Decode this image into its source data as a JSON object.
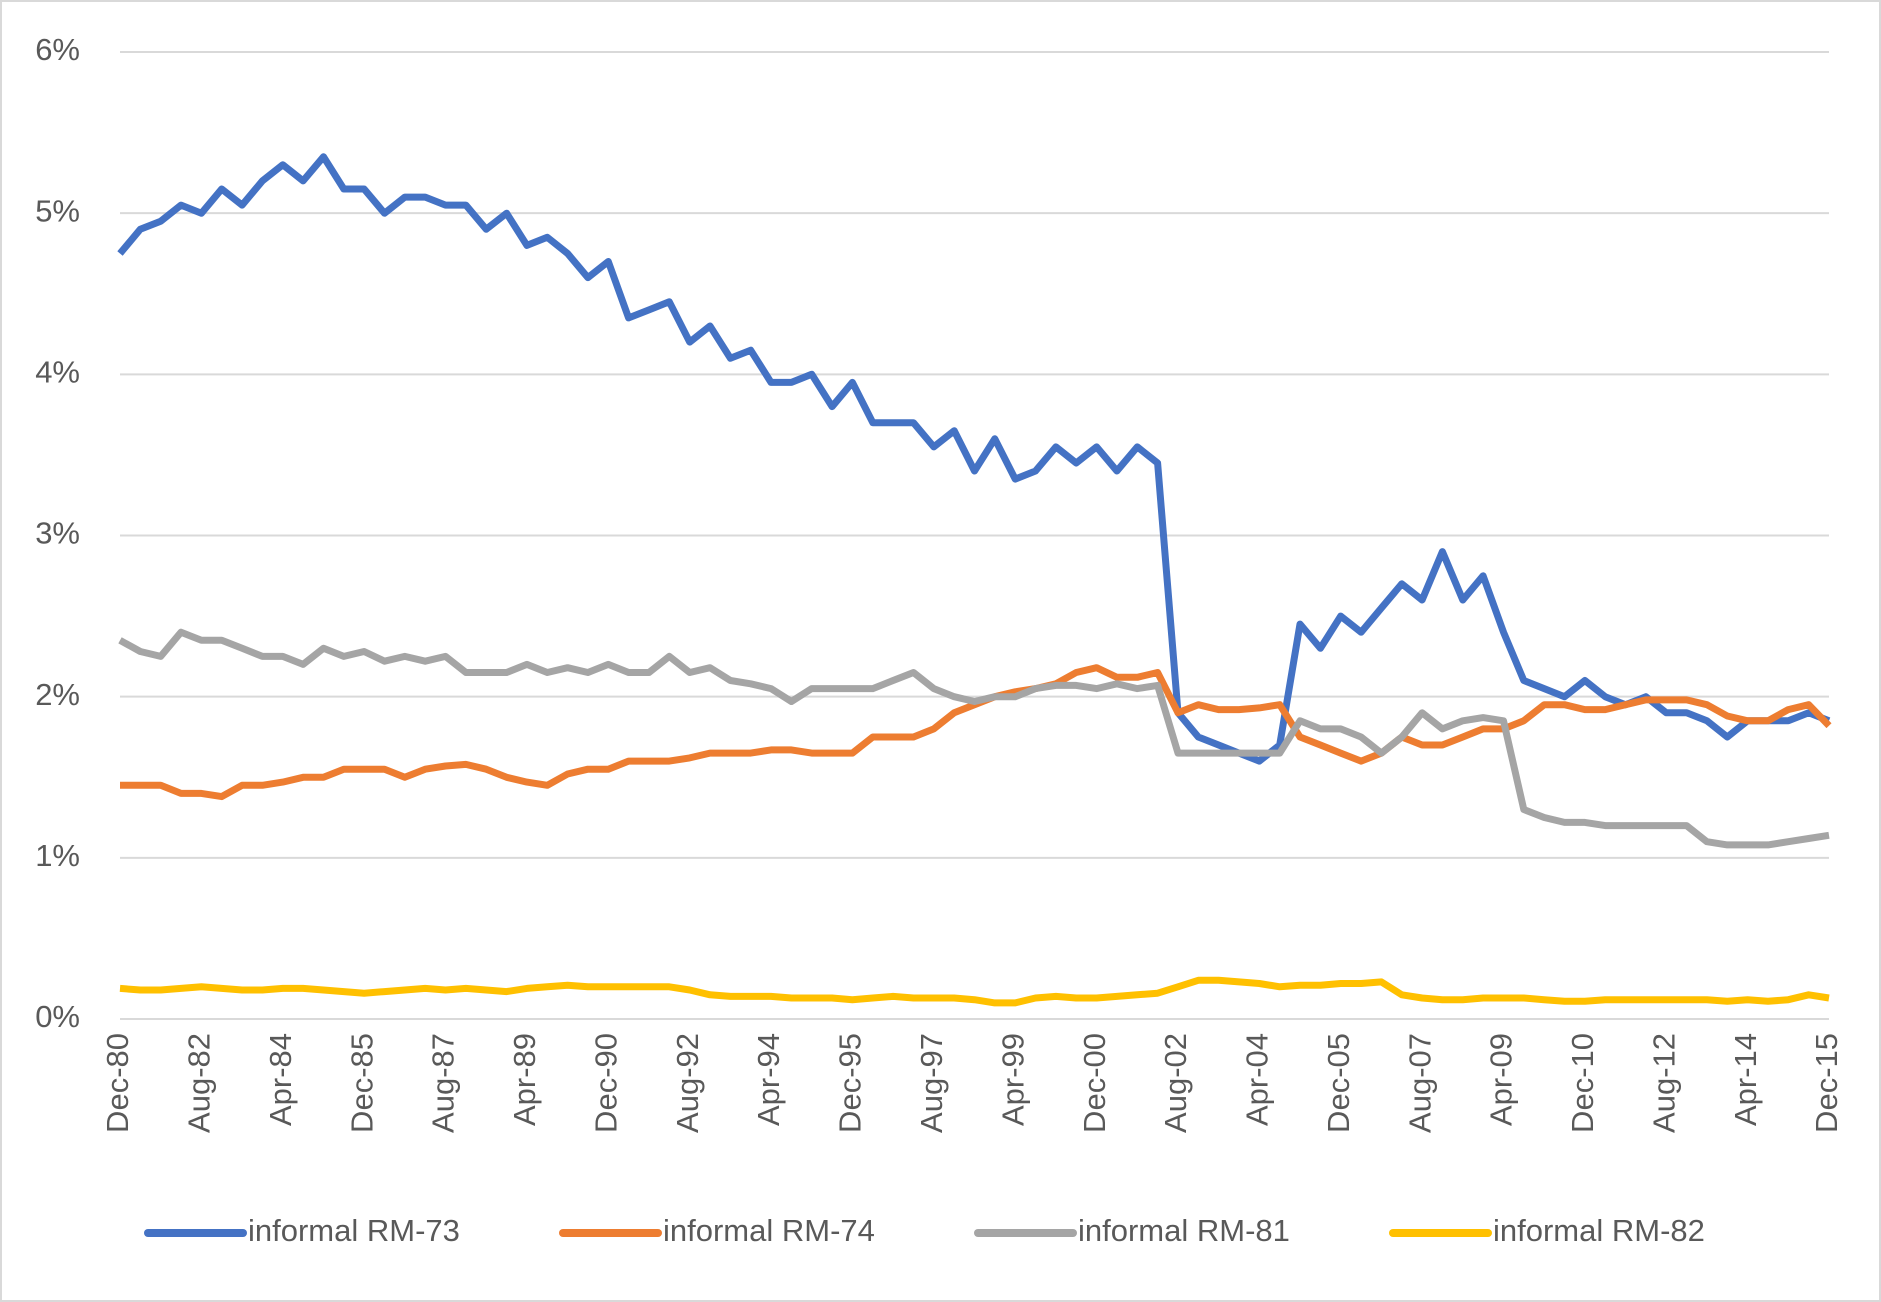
{
  "chart_data": {
    "type": "line",
    "categories": [
      "Dec-80",
      null,
      null,
      null,
      "Aug-82",
      null,
      null,
      null,
      "Apr-84",
      null,
      null,
      null,
      "Dec-85",
      null,
      null,
      null,
      "Aug-87",
      null,
      null,
      null,
      "Apr-89",
      null,
      null,
      null,
      "Dec-90",
      null,
      null,
      null,
      "Aug-92",
      null,
      null,
      null,
      "Apr-94",
      null,
      null,
      null,
      "Dec-95",
      null,
      null,
      null,
      "Aug-97",
      null,
      null,
      null,
      "Apr-99",
      null,
      null,
      null,
      "Dec-00",
      null,
      null,
      null,
      "Aug-02",
      null,
      null,
      null,
      "Apr-04",
      null,
      null,
      null,
      "Dec-05",
      null,
      null,
      null,
      "Aug-07",
      null,
      null,
      null,
      "Apr-09",
      null,
      null,
      null,
      "Dec-10",
      null,
      null,
      null,
      "Aug-12",
      null,
      null,
      null,
      "Apr-14",
      null,
      null,
      null,
      "Dec-15"
    ],
    "series": [
      {
        "name": "informal RM-73",
        "color": "#4472c4",
        "values": [
          4.75,
          4.9,
          4.95,
          5.05,
          5.0,
          5.15,
          5.05,
          5.2,
          5.3,
          5.2,
          5.35,
          5.15,
          5.15,
          5.0,
          5.1,
          5.1,
          5.05,
          5.05,
          4.9,
          5.0,
          4.8,
          4.85,
          4.75,
          4.6,
          4.7,
          4.35,
          4.4,
          4.45,
          4.2,
          4.3,
          4.1,
          4.15,
          3.95,
          3.95,
          4.0,
          3.8,
          3.95,
          3.7,
          3.7,
          3.7,
          3.55,
          3.65,
          3.4,
          3.6,
          3.35,
          3.4,
          3.55,
          3.45,
          3.55,
          3.4,
          3.55,
          3.45,
          1.9,
          1.75,
          1.7,
          1.65,
          1.6,
          1.7,
          2.45,
          2.3,
          2.5,
          2.4,
          2.55,
          2.7,
          2.6,
          2.9,
          2.6,
          2.75,
          2.4,
          2.1,
          2.05,
          2.0,
          2.1,
          2.0,
          1.95,
          2.0,
          1.9,
          1.9,
          1.85,
          1.75,
          1.85,
          1.85,
          1.85,
          1.9,
          1.85
        ]
      },
      {
        "name": "informal RM-74",
        "color": "#ed7d31",
        "values": [
          1.45,
          1.45,
          1.45,
          1.4,
          1.4,
          1.38,
          1.45,
          1.45,
          1.47,
          1.5,
          1.5,
          1.55,
          1.55,
          1.55,
          1.5,
          1.55,
          1.57,
          1.58,
          1.55,
          1.5,
          1.47,
          1.45,
          1.52,
          1.55,
          1.55,
          1.6,
          1.6,
          1.6,
          1.62,
          1.65,
          1.65,
          1.65,
          1.67,
          1.67,
          1.65,
          1.65,
          1.65,
          1.75,
          1.75,
          1.75,
          1.8,
          1.9,
          1.95,
          2.0,
          2.03,
          2.05,
          2.08,
          2.15,
          2.18,
          2.12,
          2.12,
          2.15,
          1.9,
          1.95,
          1.92,
          1.92,
          1.93,
          1.95,
          1.75,
          1.7,
          1.65,
          1.6,
          1.65,
          1.75,
          1.7,
          1.7,
          1.75,
          1.8,
          1.8,
          1.85,
          1.95,
          1.95,
          1.92,
          1.92,
          1.95,
          1.98,
          1.98,
          1.98,
          1.95,
          1.88,
          1.85,
          1.85,
          1.92,
          1.95,
          1.82
        ]
      },
      {
        "name": "informal RM-81",
        "color": "#a5a5a5",
        "values": [
          2.35,
          2.28,
          2.25,
          2.4,
          2.35,
          2.35,
          2.3,
          2.25,
          2.25,
          2.2,
          2.3,
          2.25,
          2.28,
          2.22,
          2.25,
          2.22,
          2.25,
          2.15,
          2.15,
          2.15,
          2.2,
          2.15,
          2.18,
          2.15,
          2.2,
          2.15,
          2.15,
          2.25,
          2.15,
          2.18,
          2.1,
          2.08,
          2.05,
          1.97,
          2.05,
          2.05,
          2.05,
          2.05,
          2.1,
          2.15,
          2.05,
          2.0,
          1.97,
          2.0,
          2.0,
          2.05,
          2.07,
          2.07,
          2.05,
          2.08,
          2.05,
          2.07,
          1.65,
          1.65,
          1.65,
          1.65,
          1.65,
          1.65,
          1.85,
          1.8,
          1.8,
          1.75,
          1.65,
          1.75,
          1.9,
          1.8,
          1.85,
          1.87,
          1.85,
          1.3,
          1.25,
          1.22,
          1.22,
          1.2,
          1.2,
          1.2,
          1.2,
          1.2,
          1.1,
          1.08,
          1.08,
          1.08,
          1.1,
          1.12,
          1.14
        ]
      },
      {
        "name": "informal RM-82",
        "color": "#ffc000",
        "values": [
          0.19,
          0.18,
          0.18,
          0.19,
          0.2,
          0.19,
          0.18,
          0.18,
          0.19,
          0.19,
          0.18,
          0.17,
          0.16,
          0.17,
          0.18,
          0.19,
          0.18,
          0.19,
          0.18,
          0.17,
          0.19,
          0.2,
          0.21,
          0.2,
          0.2,
          0.2,
          0.2,
          0.2,
          0.18,
          0.15,
          0.14,
          0.14,
          0.14,
          0.13,
          0.13,
          0.13,
          0.12,
          0.13,
          0.14,
          0.13,
          0.13,
          0.13,
          0.12,
          0.1,
          0.1,
          0.13,
          0.14,
          0.13,
          0.13,
          0.14,
          0.15,
          0.16,
          0.2,
          0.24,
          0.24,
          0.23,
          0.22,
          0.2,
          0.21,
          0.21,
          0.22,
          0.22,
          0.23,
          0.15,
          0.13,
          0.12,
          0.12,
          0.13,
          0.13,
          0.13,
          0.12,
          0.11,
          0.11,
          0.12,
          0.12,
          0.12,
          0.12,
          0.12,
          0.12,
          0.11,
          0.12,
          0.11,
          0.12,
          0.15,
          0.13
        ]
      }
    ],
    "ylim": [
      0,
      6
    ],
    "yticks": [
      {
        "value": 0,
        "label": "0%"
      },
      {
        "value": 1,
        "label": "1%"
      },
      {
        "value": 2,
        "label": "2%"
      },
      {
        "value": 3,
        "label": "3%"
      },
      {
        "value": 4,
        "label": "4%"
      },
      {
        "value": 5,
        "label": "5%"
      },
      {
        "value": 6,
        "label": "6%"
      }
    ],
    "grid": true,
    "legend": "bottom"
  }
}
